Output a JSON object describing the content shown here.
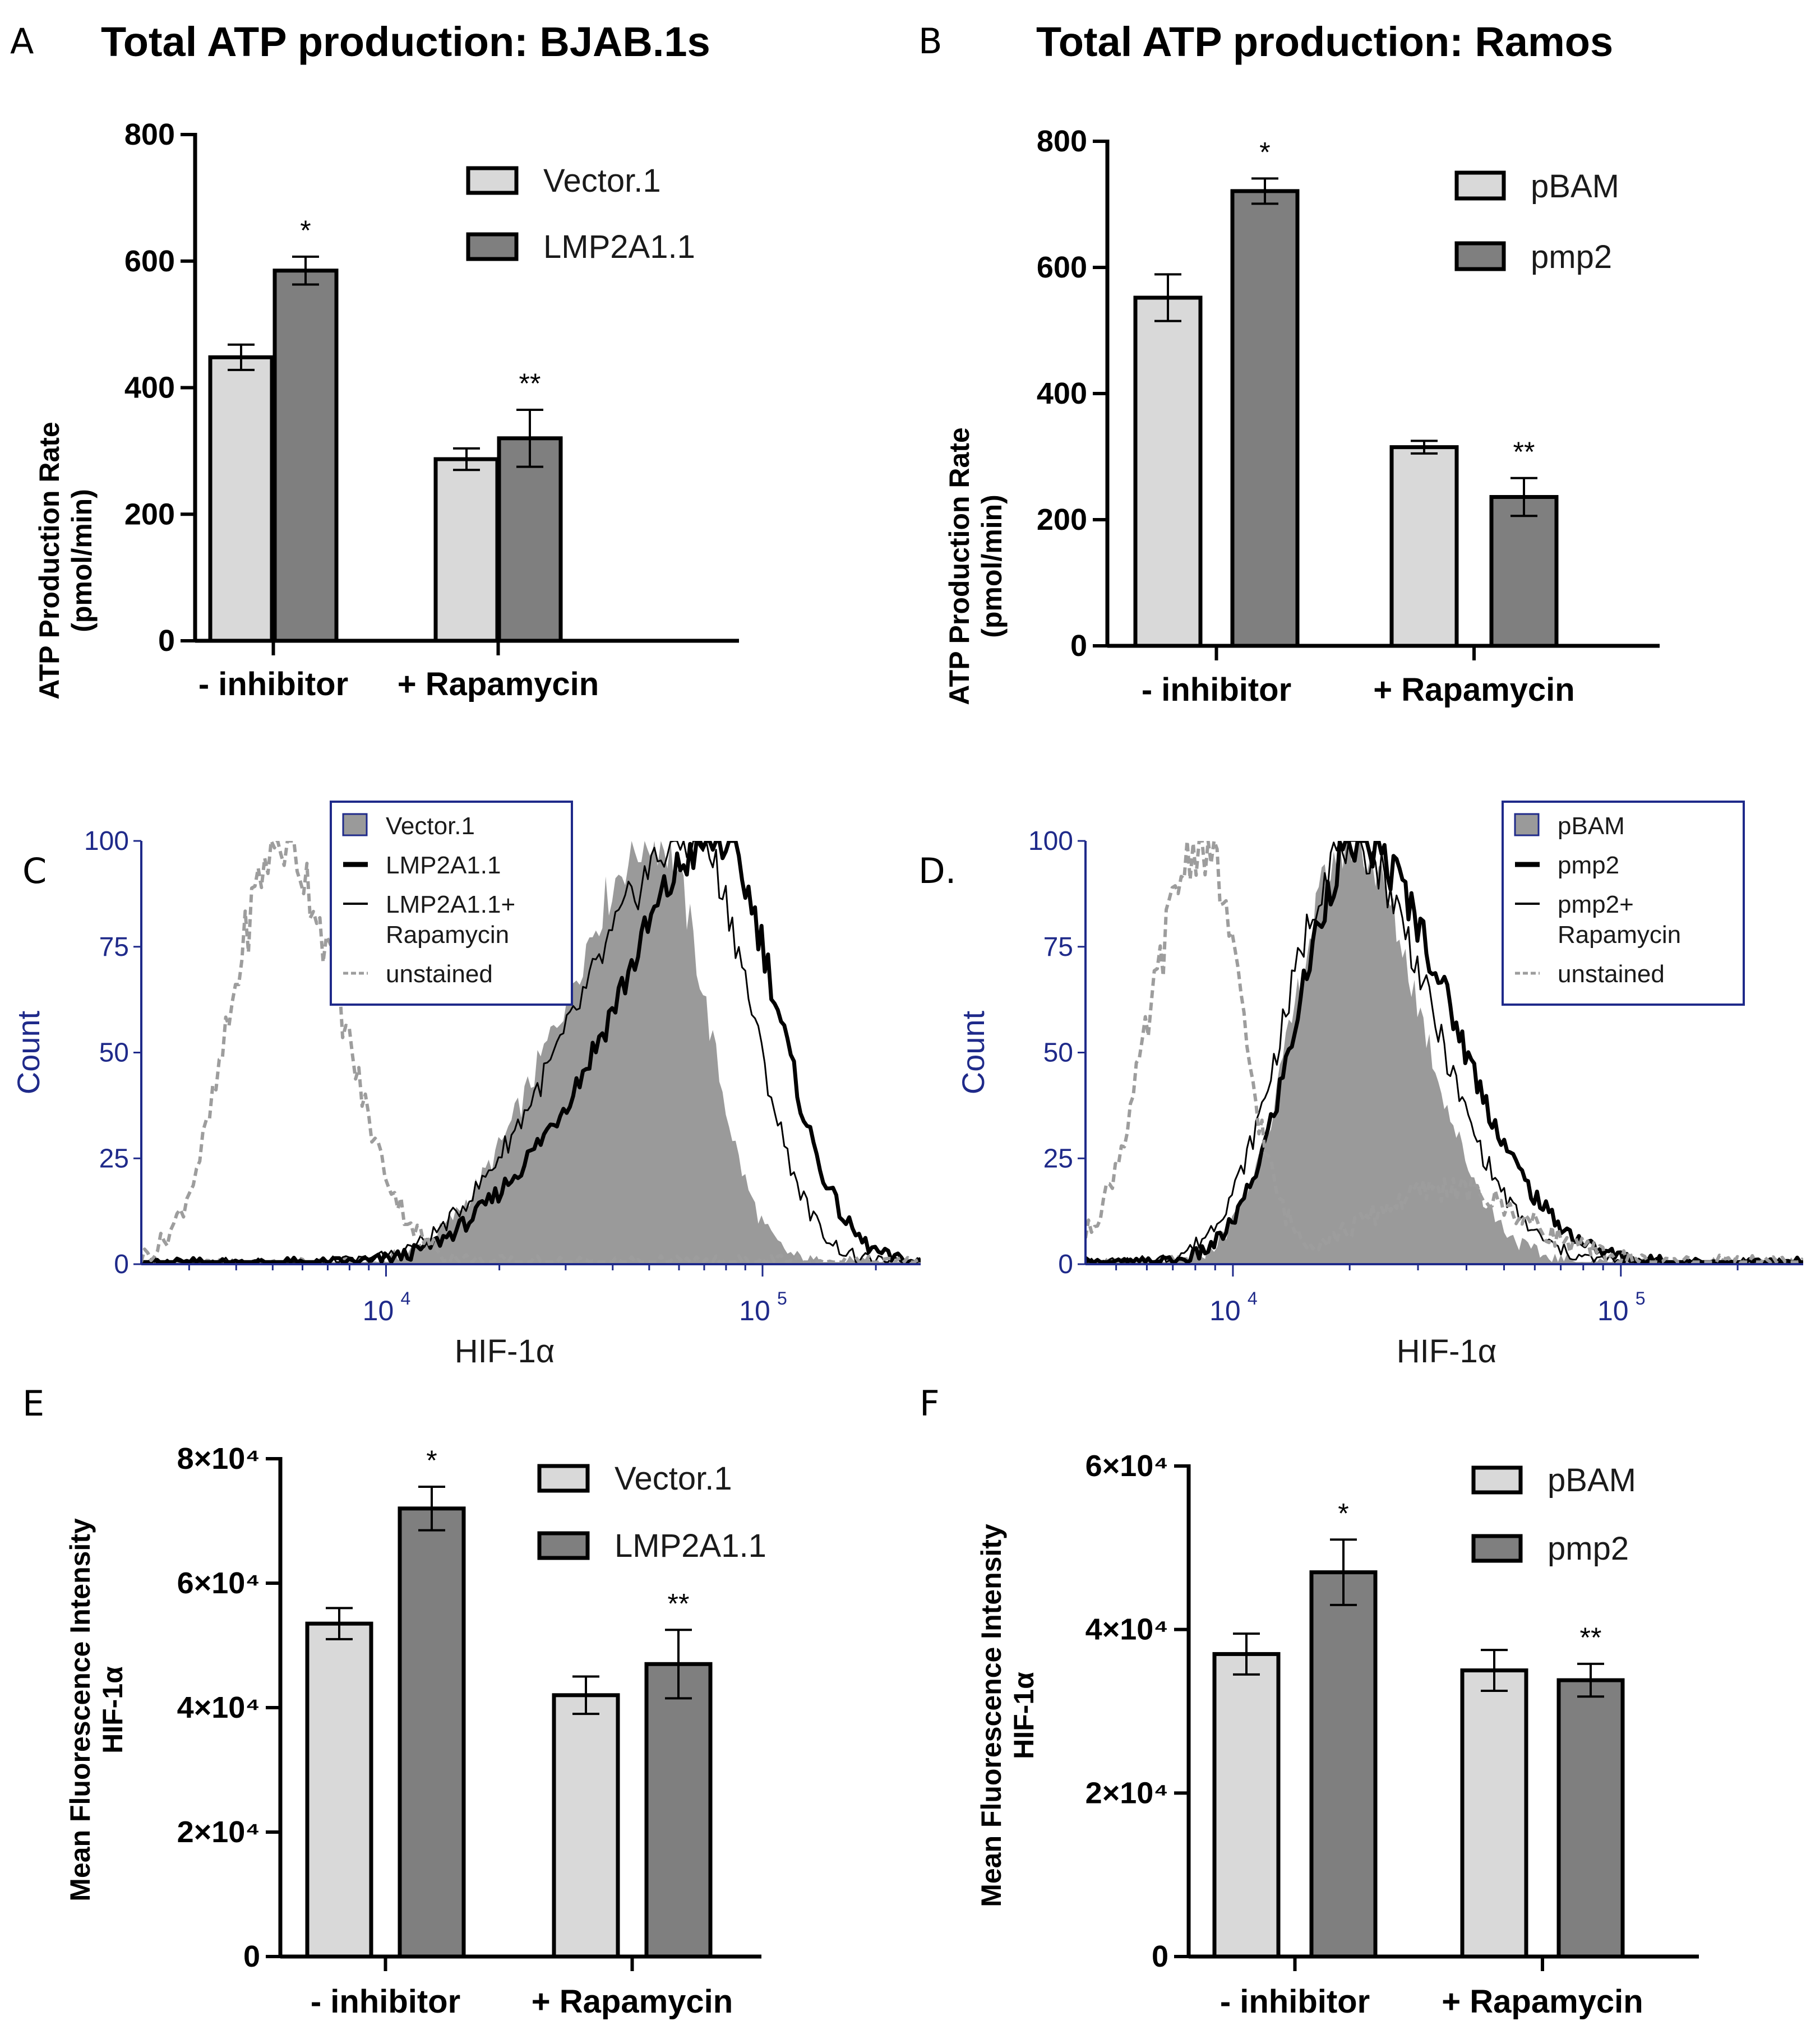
{
  "colors": {
    "light_bar": "#d9d9d9",
    "dark_bar": "#7f7f7f",
    "flow_fill": "#9a9a9a",
    "flow_axis": "#1f2a8a",
    "unstained": "#9d9d9d"
  },
  "chart_data": [
    {
      "panel": "A",
      "type": "bar",
      "title": "Total ATP production: BJAB.1s",
      "ylabel_line1": "ATP Production Rate",
      "ylabel_line2": "(pmol/min)",
      "ylim": [
        0,
        800
      ],
      "yticks": [
        "0",
        "200",
        "400",
        "600",
        "800"
      ],
      "categories": [
        "- inhibitor",
        "+ Rapamycin"
      ],
      "series": [
        {
          "name": "Vector.1",
          "values": [
            448,
            287
          ],
          "errors": [
            20,
            17
          ]
        },
        {
          "name": "LMP2A1.1",
          "values": [
            585,
            320
          ],
          "errors": [
            22,
            45
          ]
        }
      ],
      "annotations": [
        "*",
        "**"
      ]
    },
    {
      "panel": "B",
      "type": "bar",
      "title": "Total ATP production: Ramos",
      "ylabel_line1": "ATP Production Rate",
      "ylabel_line2": "(pmol/min)",
      "ylim": [
        0,
        800
      ],
      "yticks": [
        "0",
        "200",
        "400",
        "600",
        "800"
      ],
      "categories": [
        "- inhibitor",
        "+ Rapamycin"
      ],
      "series": [
        {
          "name": "pBAM",
          "values": [
            552,
            315
          ],
          "errors": [
            37,
            10
          ]
        },
        {
          "name": "pmp2",
          "values": [
            721,
            236
          ],
          "errors": [
            20,
            30
          ]
        }
      ],
      "annotations": [
        "*",
        "**"
      ]
    },
    {
      "panel": "C",
      "type": "histogram",
      "ylabel": "Count",
      "xlabel": "HIF-1α",
      "ylim": [
        0,
        100
      ],
      "yticks": [
        "0",
        "25",
        "50",
        "75",
        "100"
      ],
      "xtick_base": "10",
      "xtick_exponents": [
        "4",
        "5"
      ],
      "legend": [
        "Vector.1",
        "LMP2A1.1",
        "LMP2A1.1+",
        "Rapamycin",
        "unstained"
      ],
      "approx_peaks_log10": {
        "Vector.1": 4.72,
        "LMP2A1.1": 4.88,
        "LMP2A1.1+ Rapamycin": 4.82,
        "unstained": 3.72
      }
    },
    {
      "panel": "D.",
      "type": "histogram",
      "ylabel": "Count",
      "xlabel": "HIF-1α",
      "ylim": [
        0,
        100
      ],
      "yticks": [
        "0",
        "25",
        "50",
        "75",
        "100"
      ],
      "xtick_base": "10",
      "xtick_exponents": [
        "4",
        "5"
      ],
      "legend": [
        "pBAM",
        "pmp2",
        "pmp2+",
        "Rapamycin",
        "unstained"
      ],
      "approx_peaks_log10": {
        "pBAM": 4.3,
        "pmp2": 4.32,
        "pmp2+ Rapamycin": 4.3,
        "unstained": 3.92
      }
    },
    {
      "panel": "E",
      "type": "bar",
      "ylabel_line1": "Mean Fluorescence Intensity",
      "ylabel_line2": "HIF-1α",
      "ylim": [
        0,
        80000
      ],
      "yticks": [
        "0",
        "2×10⁴",
        "4×10⁴",
        "6×10⁴",
        "8×10⁴"
      ],
      "categories": [
        "- inhibitor",
        "+ Rapamycin"
      ],
      "series": [
        {
          "name": "Vector.1",
          "values": [
            53500,
            42000
          ],
          "errors": [
            2500,
            3000
          ]
        },
        {
          "name": "LMP2A1.1",
          "values": [
            72000,
            47000
          ],
          "errors": [
            3500,
            5500
          ]
        }
      ],
      "annotations": [
        "*",
        "**"
      ]
    },
    {
      "panel": "F",
      "type": "bar",
      "ylabel_line1": "Mean Fluorescence Intensity",
      "ylabel_line2": "HIF-1α",
      "ylim": [
        0,
        60000
      ],
      "yticks": [
        "0",
        "2×10⁴",
        "4×10⁴",
        "6×10⁴"
      ],
      "categories": [
        "- inhibitor",
        "+ Rapamycin"
      ],
      "series": [
        {
          "name": "pBAM",
          "values": [
            37000,
            35000
          ],
          "errors": [
            2500,
            2500
          ]
        },
        {
          "name": "pmp2",
          "values": [
            47000,
            33800
          ],
          "errors": [
            4000,
            2000
          ]
        }
      ],
      "annotations": [
        "*",
        "**"
      ]
    }
  ]
}
